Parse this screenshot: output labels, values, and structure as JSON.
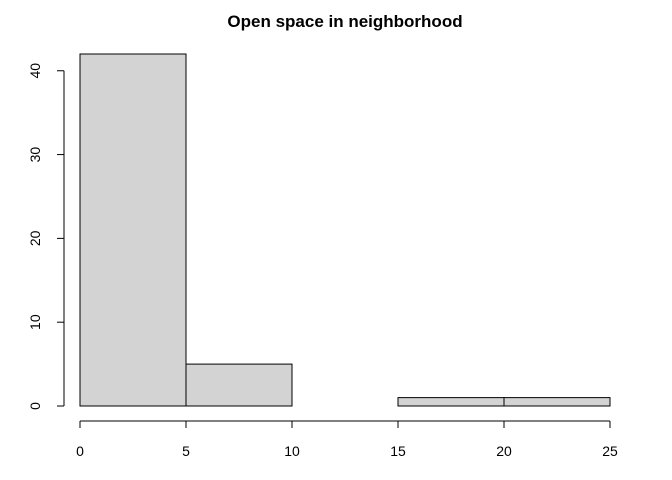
{
  "chart_data": {
    "type": "bar",
    "title": "Open space in neighborhood",
    "xlabel": "",
    "ylabel": "",
    "bins": [
      {
        "x0": 0,
        "x1": 5,
        "count": 42
      },
      {
        "x0": 5,
        "x1": 10,
        "count": 5
      },
      {
        "x0": 10,
        "x1": 15,
        "count": 0
      },
      {
        "x0": 15,
        "x1": 20,
        "count": 1
      },
      {
        "x0": 20,
        "x1": 25,
        "count": 1
      }
    ],
    "xlim": [
      0,
      25
    ],
    "ylim": [
      0,
      42
    ],
    "x_ticks": [
      "0",
      "5",
      "10",
      "15",
      "20",
      "25"
    ],
    "y_ticks": [
      "0",
      "10",
      "20",
      "30",
      "40"
    ],
    "bar_color": "#d3d3d3",
    "grid": false
  }
}
